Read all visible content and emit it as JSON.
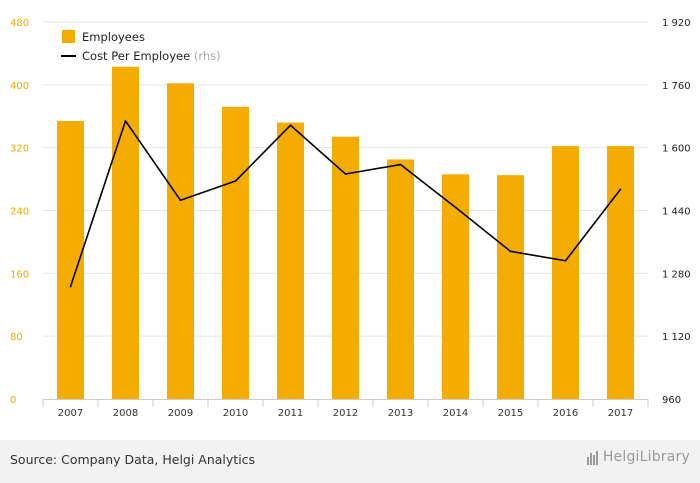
{
  "chart_data": {
    "type": "bar+line",
    "categories": [
      "2007",
      "2008",
      "2009",
      "2010",
      "2011",
      "2012",
      "2013",
      "2014",
      "2015",
      "2016",
      "2017"
    ],
    "series": [
      {
        "name": "Employees",
        "kind": "bar",
        "axis": "left",
        "color": "#f5ac00",
        "values": [
          354,
          423,
          402,
          372,
          352,
          334,
          305,
          286,
          285,
          322,
          322
        ]
      },
      {
        "name": "Cost Per Employee",
        "name_suffix": "(rhs)",
        "kind": "line",
        "axis": "right",
        "color": "#000000",
        "values": [
          1246,
          1668,
          1466,
          1515,
          1657,
          1533,
          1557,
          1448,
          1336,
          1312,
          1494
        ]
      }
    ],
    "left_axis": {
      "min": 0,
      "max": 480,
      "ticks": [
        "0",
        "80",
        "160",
        "240",
        "320",
        "400",
        "480"
      ],
      "color": "#f5a800"
    },
    "right_axis": {
      "min": 960,
      "max": 1920,
      "ticks": [
        "960",
        "1 120",
        "1 280",
        "1 440",
        "1 600",
        "1 760",
        "1 920"
      ]
    },
    "grid": true,
    "legend_position": "top-left"
  },
  "footer": {
    "source": "Source: Company Data, Helgi Analytics",
    "logo": "HelgiLibrary"
  }
}
